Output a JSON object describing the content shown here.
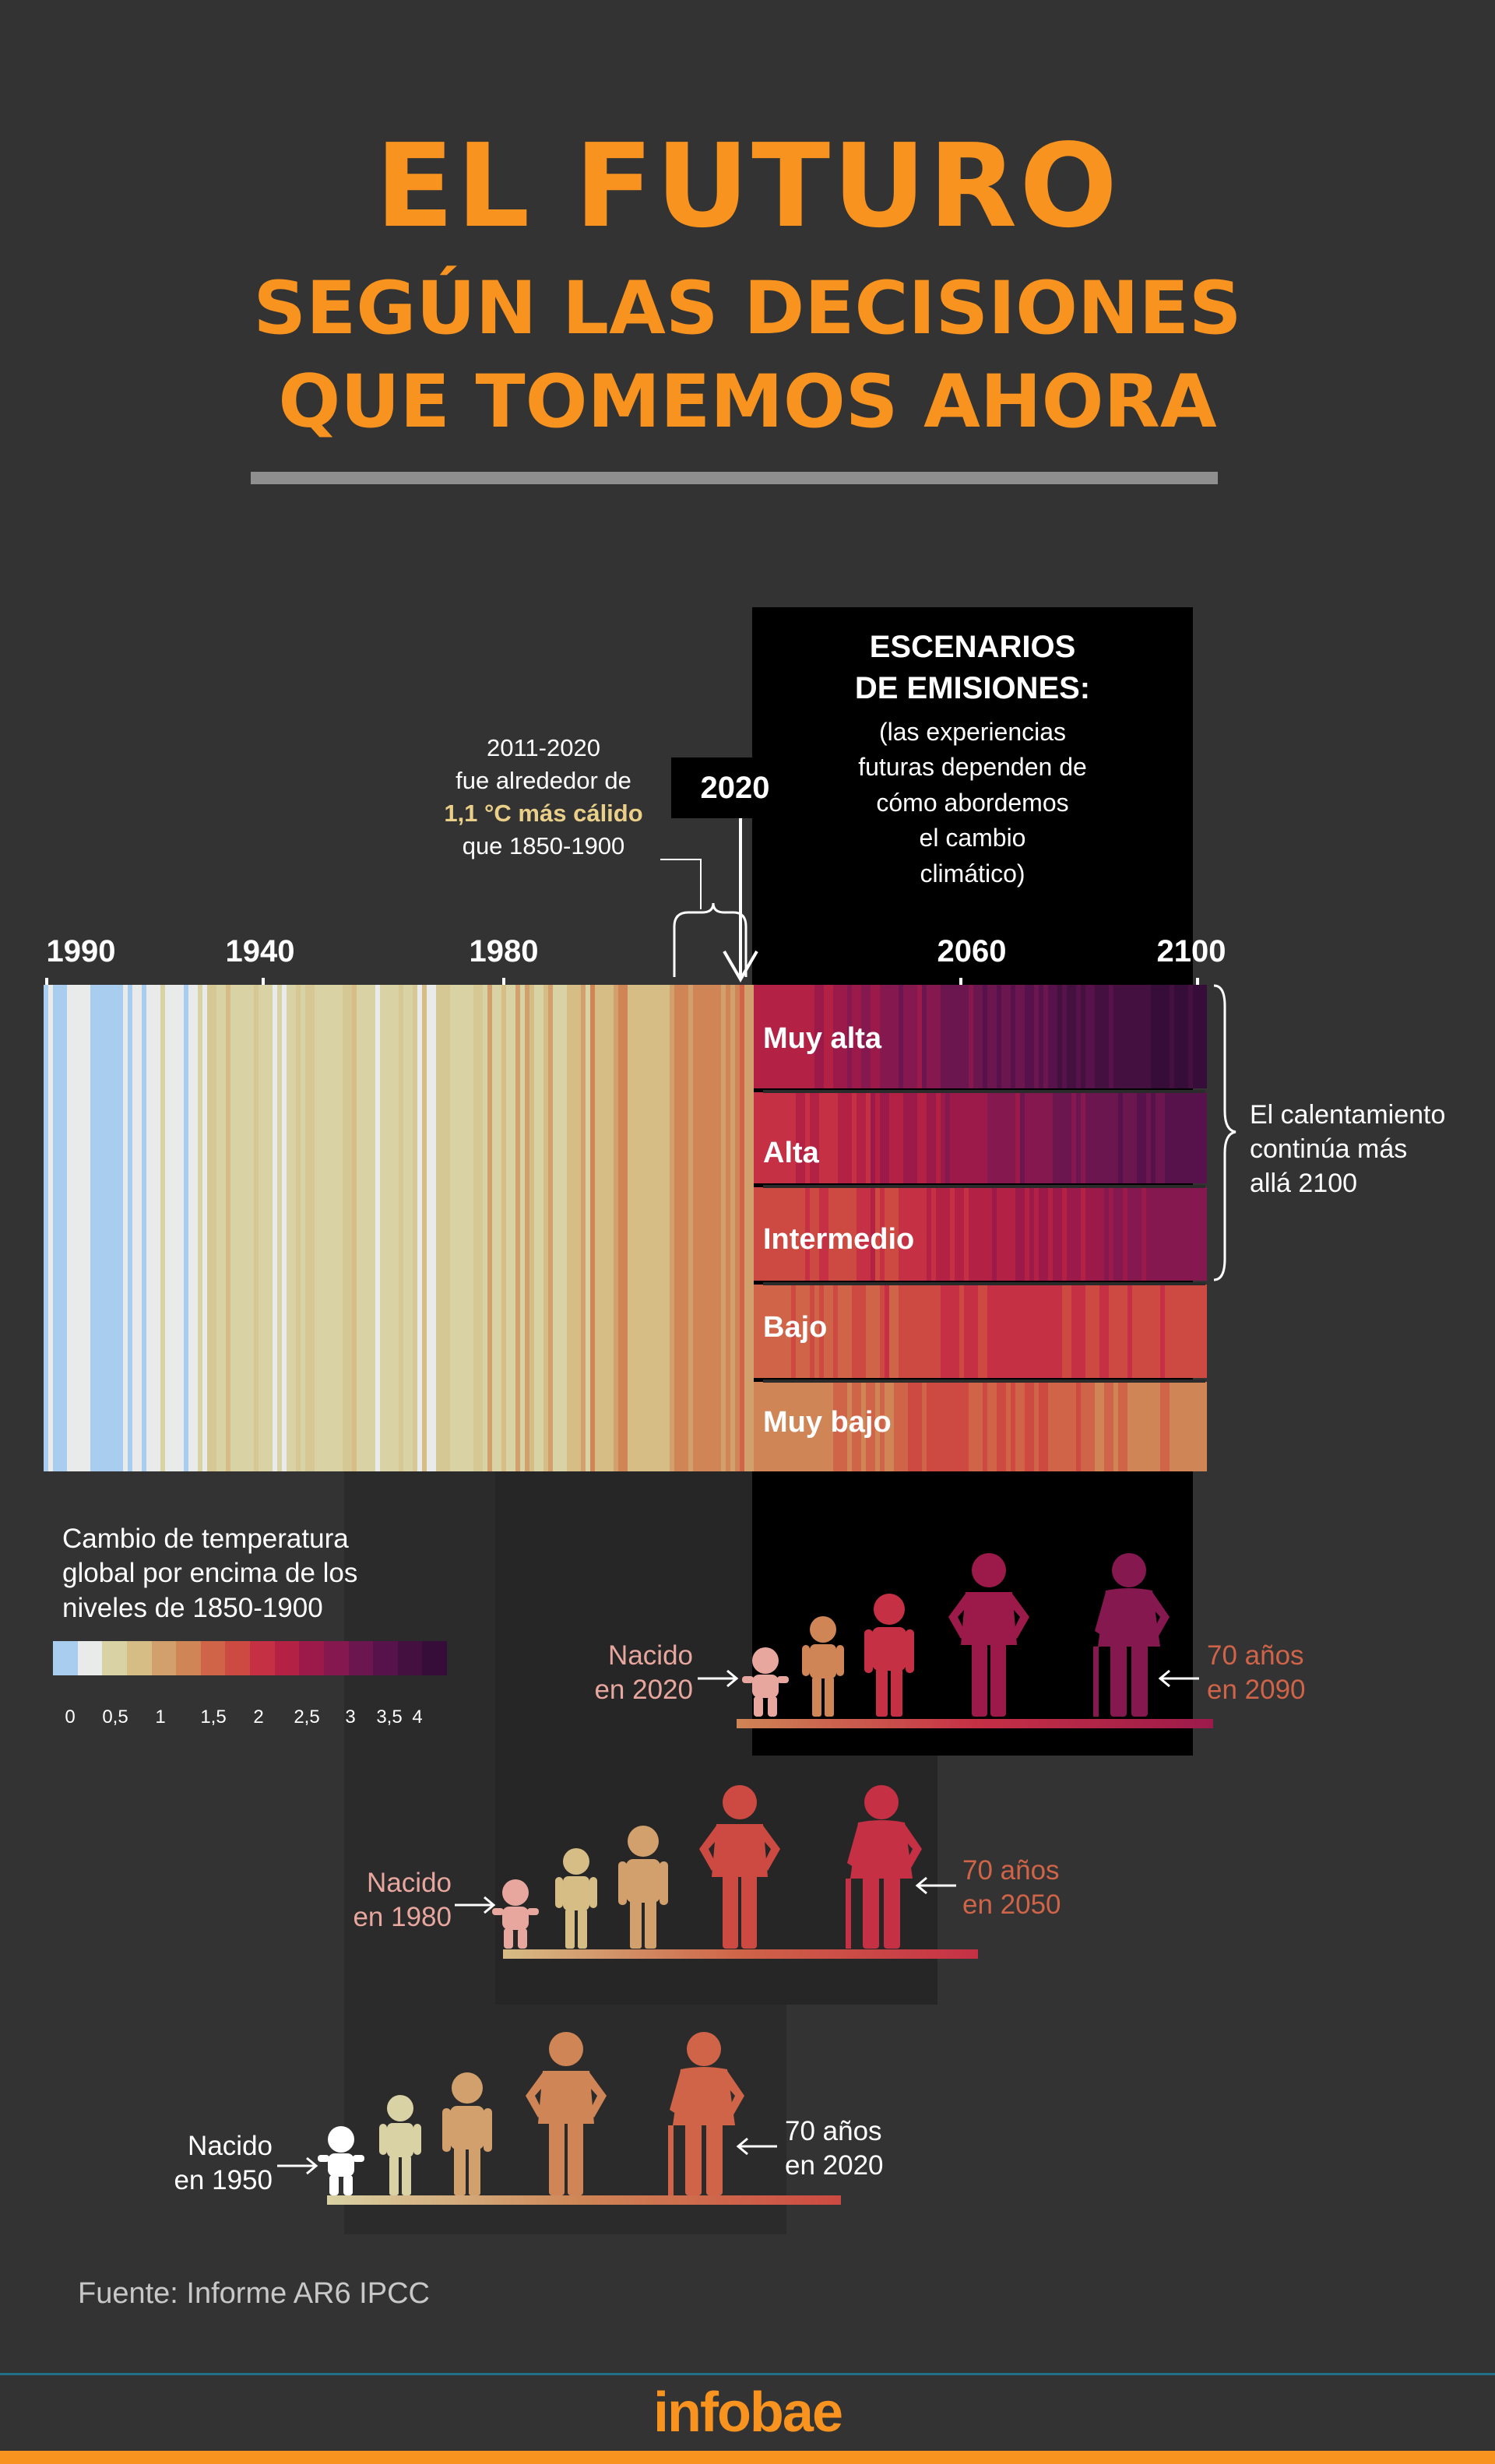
{
  "header": {
    "title": "EL FUTURO",
    "subtitle_line1": "SEGÚN LAS DECISIONES",
    "subtitle_line2": "QUE TOMEMOS AHORA"
  },
  "scenarios": {
    "heading_line1": "ESCENARIOS",
    "heading_line2": "DE  EMISIONES:",
    "description_lines": [
      "(las experiencias",
      "futuras dependen de",
      "cómo abordemos",
      "el cambio",
      "climático)"
    ],
    "bands": [
      "Muy alta",
      "Alta",
      "Intermedio",
      "Bajo",
      "Muy bajo"
    ]
  },
  "annotation": {
    "line1": "2011-2020",
    "line2": "fue alrededor de",
    "highlight": "1,1 °C más cálido",
    "line4": "que 1850-1900",
    "year_marker": "2020"
  },
  "timeline": {
    "year_labels": [
      "1990",
      "1940",
      "1980",
      "2060",
      "2100"
    ]
  },
  "brace_note": {
    "lines": [
      "El calentamiento",
      "continúa más",
      "allá 2100"
    ]
  },
  "legend": {
    "title_lines": [
      "Cambio de temperatura",
      "global por encima de los",
      "niveles de 1850-1900"
    ],
    "tick_labels": [
      "0",
      "0,5",
      "1",
      "1,5",
      "2",
      "2,5",
      "3",
      "3,5",
      "4"
    ],
    "colors": [
      "#a9cdef",
      "#e9eaea",
      "#d9d2a4",
      "#d6bc85",
      "#d2a06c",
      "#cf8555",
      "#cf6448",
      "#cd4a42",
      "#c63045",
      "#b32245",
      "#9c1a4a",
      "#84184f",
      "#6c1650",
      "#57124c",
      "#44103f",
      "#360d38"
    ]
  },
  "generations": [
    {
      "born_line1": "Nacido",
      "born_line2": "en 2020",
      "old_line1": "70 años",
      "old_line2": "en 2090"
    },
    {
      "born_line1": "Nacido",
      "born_line2": "en 1980",
      "old_line1": "70 años",
      "old_line2": "en 2050"
    },
    {
      "born_line1": "Nacido",
      "born_line2": "en 1950",
      "old_line1": "70 años",
      "old_line2": "en 2020"
    }
  ],
  "source": "Fuente: Informe AR6 IPCC",
  "footer": {
    "logo": "infobae"
  },
  "colors": {
    "accent": "#f7931e",
    "background": "#333333",
    "panel": "#000000"
  }
}
